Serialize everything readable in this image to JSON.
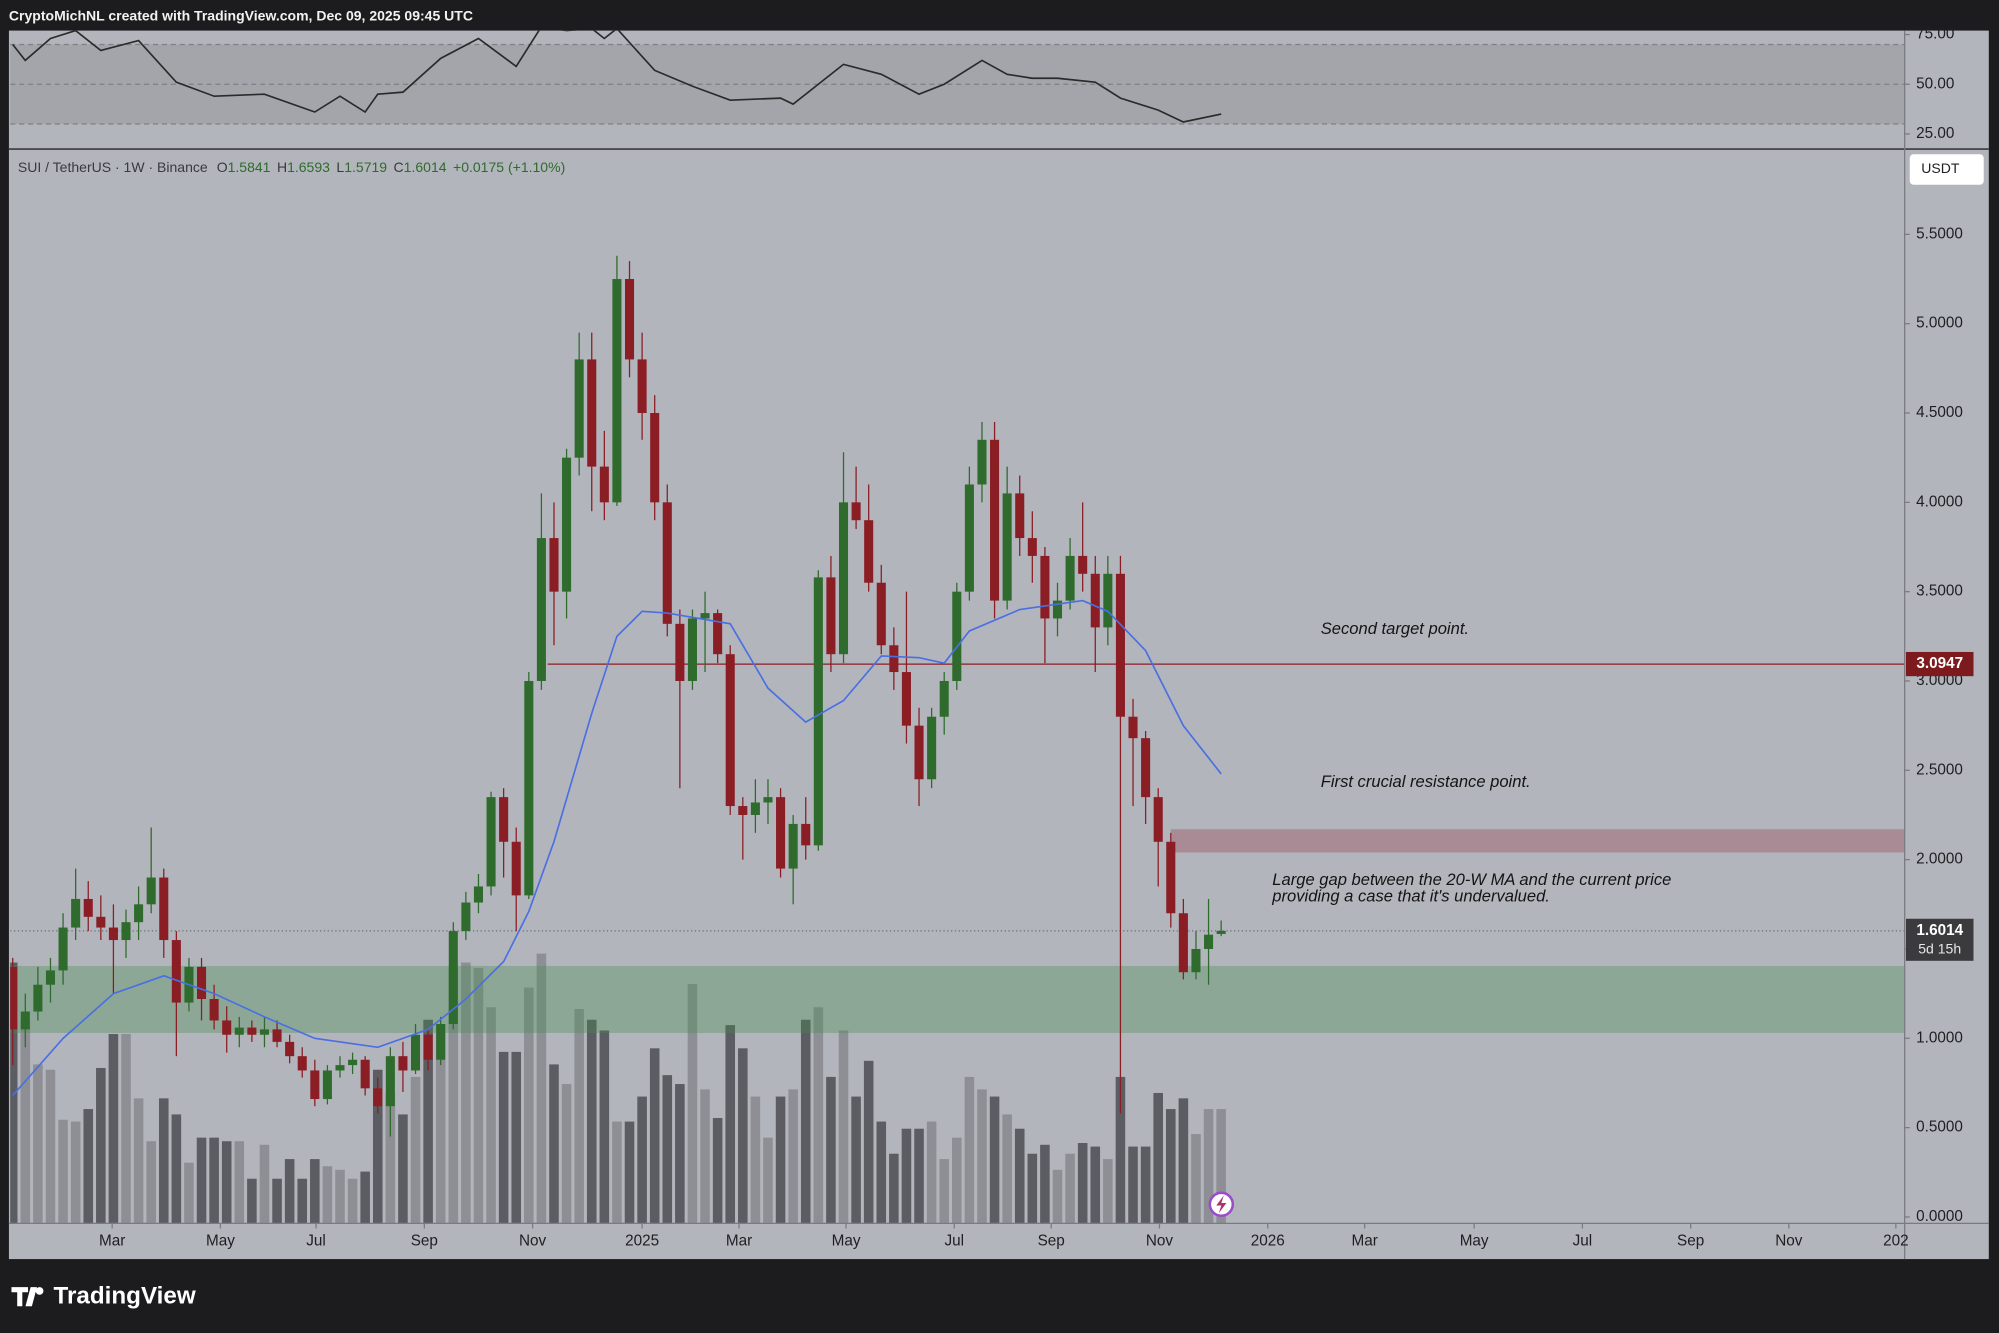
{
  "header": "CryptoMichNL created with TradingView.com, Dec 09, 2025 09:45 UTC",
  "brand": "TradingView",
  "chart_data": {
    "type": "candlestick",
    "symbol": "SUI / TetherUS · 1W · Binance",
    "ohlc_letters": [
      "O",
      "H",
      "L",
      "C"
    ],
    "change": "+0.0175 (+1.10%)",
    "currency": "USDT",
    "countdown": "5d 15h",
    "candles": [
      [
        1.4,
        1.45,
        0.85,
        1.05
      ],
      [
        1.05,
        1.25,
        0.95,
        1.15
      ],
      [
        1.15,
        1.4,
        1.1,
        1.3
      ],
      [
        1.3,
        1.45,
        1.2,
        1.38
      ],
      [
        1.38,
        1.7,
        1.3,
        1.62
      ],
      [
        1.62,
        1.95,
        1.55,
        1.78
      ],
      [
        1.78,
        1.88,
        1.6,
        1.68
      ],
      [
        1.68,
        1.8,
        1.55,
        1.62
      ],
      [
        1.62,
        1.75,
        1.25,
        1.55
      ],
      [
        1.55,
        1.72,
        1.45,
        1.65
      ],
      [
        1.65,
        1.85,
        1.55,
        1.75
      ],
      [
        1.75,
        2.18,
        1.7,
        1.9
      ],
      [
        1.9,
        1.95,
        1.45,
        1.55
      ],
      [
        1.55,
        1.6,
        0.9,
        1.2
      ],
      [
        1.2,
        1.45,
        1.15,
        1.4
      ],
      [
        1.4,
        1.45,
        1.1,
        1.22
      ],
      [
        1.22,
        1.3,
        1.05,
        1.1
      ],
      [
        1.1,
        1.18,
        0.92,
        1.02
      ],
      [
        1.02,
        1.12,
        0.95,
        1.06
      ],
      [
        1.06,
        1.1,
        0.98,
        1.02
      ],
      [
        1.02,
        1.12,
        0.95,
        1.05
      ],
      [
        1.05,
        1.1,
        0.95,
        0.98
      ],
      [
        0.98,
        1.02,
        0.86,
        0.9
      ],
      [
        0.9,
        0.95,
        0.78,
        0.82
      ],
      [
        0.82,
        0.88,
        0.62,
        0.66
      ],
      [
        0.66,
        0.85,
        0.63,
        0.82
      ],
      [
        0.82,
        0.9,
        0.78,
        0.85
      ],
      [
        0.85,
        0.92,
        0.8,
        0.88
      ],
      [
        0.88,
        0.9,
        0.68,
        0.72
      ],
      [
        0.72,
        0.78,
        0.58,
        0.62
      ],
      [
        0.62,
        0.95,
        0.45,
        0.9
      ],
      [
        0.9,
        0.98,
        0.7,
        0.82
      ],
      [
        0.82,
        1.08,
        0.8,
        1.02
      ],
      [
        1.02,
        1.05,
        0.82,
        0.88
      ],
      [
        0.88,
        1.12,
        0.85,
        1.08
      ],
      [
        1.08,
        1.65,
        1.05,
        1.6
      ],
      [
        1.6,
        1.82,
        1.55,
        1.76
      ],
      [
        1.76,
        1.92,
        1.7,
        1.85
      ],
      [
        1.85,
        2.38,
        1.8,
        2.35
      ],
      [
        2.35,
        2.4,
        1.9,
        2.1
      ],
      [
        2.1,
        2.18,
        1.6,
        1.8
      ],
      [
        1.8,
        3.05,
        1.78,
        3.0
      ],
      [
        3.0,
        4.05,
        2.95,
        3.8
      ],
      [
        3.8,
        4.0,
        3.2,
        3.5
      ],
      [
        3.5,
        4.3,
        3.35,
        4.25
      ],
      [
        4.25,
        4.95,
        4.15,
        4.8
      ],
      [
        4.8,
        4.95,
        3.95,
        4.2
      ],
      [
        4.2,
        4.4,
        3.9,
        4.0
      ],
      [
        4.0,
        5.38,
        3.98,
        5.25
      ],
      [
        5.25,
        5.35,
        4.7,
        4.8
      ],
      [
        4.8,
        4.95,
        4.35,
        4.5
      ],
      [
        4.5,
        4.6,
        3.9,
        4.0
      ],
      [
        4.0,
        4.1,
        3.25,
        3.32
      ],
      [
        3.32,
        3.4,
        2.4,
        3.0
      ],
      [
        3.0,
        3.4,
        2.95,
        3.35
      ],
      [
        3.35,
        3.5,
        3.05,
        3.38
      ],
      [
        3.38,
        3.4,
        3.1,
        3.15
      ],
      [
        3.15,
        3.2,
        2.25,
        2.3
      ],
      [
        2.3,
        2.35,
        2.0,
        2.25
      ],
      [
        2.25,
        2.45,
        2.15,
        2.32
      ],
      [
        2.32,
        2.45,
        2.2,
        2.35
      ],
      [
        2.35,
        2.4,
        1.9,
        1.95
      ],
      [
        1.95,
        2.25,
        1.75,
        2.2
      ],
      [
        2.2,
        2.35,
        2.0,
        2.08
      ],
      [
        2.08,
        3.62,
        2.05,
        3.58
      ],
      [
        3.58,
        3.7,
        3.05,
        3.15
      ],
      [
        3.15,
        4.28,
        3.1,
        4.0
      ],
      [
        4.0,
        4.2,
        3.85,
        3.9
      ],
      [
        3.9,
        4.1,
        3.5,
        3.55
      ],
      [
        3.55,
        3.65,
        3.15,
        3.2
      ],
      [
        3.2,
        3.3,
        2.95,
        3.05
      ],
      [
        3.05,
        3.5,
        2.65,
        2.75
      ],
      [
        2.75,
        2.85,
        2.3,
        2.45
      ],
      [
        2.45,
        2.85,
        2.4,
        2.8
      ],
      [
        2.8,
        3.05,
        2.7,
        3.0
      ],
      [
        3.0,
        3.55,
        2.95,
        3.5
      ],
      [
        3.5,
        4.2,
        3.45,
        4.1
      ],
      [
        4.1,
        4.45,
        4.0,
        4.35
      ],
      [
        4.35,
        4.45,
        3.35,
        3.45
      ],
      [
        3.45,
        4.2,
        3.4,
        4.05
      ],
      [
        4.05,
        4.15,
        3.7,
        3.8
      ],
      [
        3.8,
        3.95,
        3.55,
        3.7
      ],
      [
        3.7,
        3.75,
        3.1,
        3.35
      ],
      [
        3.35,
        3.55,
        3.25,
        3.45
      ],
      [
        3.45,
        3.8,
        3.4,
        3.7
      ],
      [
        3.7,
        4.0,
        3.5,
        3.6
      ],
      [
        3.6,
        3.7,
        3.05,
        3.3
      ],
      [
        3.3,
        3.7,
        3.2,
        3.6
      ],
      [
        3.6,
        3.7,
        0.58,
        2.8
      ],
      [
        2.8,
        2.9,
        2.3,
        2.68
      ],
      [
        2.68,
        2.72,
        2.2,
        2.35
      ],
      [
        2.35,
        2.4,
        1.85,
        2.1
      ],
      [
        2.1,
        2.15,
        1.62,
        1.7
      ],
      [
        1.7,
        1.78,
        1.33,
        1.37
      ],
      [
        1.37,
        1.6,
        1.33,
        1.5
      ],
      [
        1.5,
        1.78,
        1.3,
        1.58
      ],
      [
        1.5841,
        1.6593,
        1.5719,
        1.6014
      ]
    ],
    "colors": {
      "up": "#2f6b2c",
      "down": "#8b1d24"
    },
    "volume": [
      1.46,
      1.14,
      0.89,
      0.86,
      0.58,
      0.57,
      0.64,
      0.87,
      1.06,
      1.06,
      0.7,
      0.46,
      0.7,
      0.61,
      0.34,
      0.48,
      0.48,
      0.46,
      0.46,
      0.25,
      0.44,
      0.25,
      0.36,
      0.25,
      0.36,
      0.32,
      0.3,
      0.25,
      0.29,
      0.86,
      0.73,
      0.61,
      0.82,
      1.14,
      1.11,
      1.43,
      1.46,
      1.43,
      1.21,
      0.96,
      0.96,
      1.32,
      1.51,
      0.89,
      0.78,
      1.2,
      1.14,
      1.08,
      0.57,
      0.57,
      0.71,
      0.98,
      0.83,
      0.78,
      1.34,
      0.75,
      0.59,
      1.11,
      0.98,
      0.71,
      0.48,
      0.71,
      0.75,
      1.14,
      1.21,
      0.82,
      1.08,
      0.71,
      0.91,
      0.57,
      0.39,
      0.53,
      0.53,
      0.57,
      0.36,
      0.48,
      0.82,
      0.75,
      0.71,
      0.61,
      0.53,
      0.39,
      0.44,
      0.3,
      0.39,
      0.45,
      0.43,
      0.36,
      0.82,
      0.43,
      0.43,
      0.73,
      0.64,
      0.7,
      0.5,
      0.64,
      0.64
    ],
    "volume_colors": {
      "up": "#8e8f95",
      "down": "#5c5d62"
    },
    "ma": {
      "x": [
        0,
        4,
        8,
        12,
        16,
        20,
        24,
        29,
        33,
        36,
        39,
        41,
        43,
        46,
        48,
        50,
        52,
        57,
        60,
        63,
        66,
        69,
        72,
        74,
        76,
        80,
        85,
        87,
        90,
        93,
        96
      ],
      "values": [
        0.68,
        1.0,
        1.25,
        1.35,
        1.25,
        1.12,
        1.0,
        0.95,
        1.05,
        1.22,
        1.43,
        1.71,
        2.1,
        2.82,
        3.25,
        3.39,
        3.38,
        3.32,
        2.96,
        2.77,
        2.89,
        3.14,
        3.13,
        3.1,
        3.28,
        3.4,
        3.45,
        3.39,
        3.17,
        2.75,
        2.48
      ],
      "color": "#4a6fe3"
    },
    "resistance": {
      "value": 3.0947,
      "x_from": 42.5,
      "color": "#8b1d24"
    },
    "zones": [
      {
        "from": 1.03,
        "to": 1.405,
        "x_from": -0.2,
        "color": "rgba(70,140,80,0.35)"
      },
      {
        "from": 2.04,
        "to": 2.17,
        "x_from": 92,
        "color": "rgba(150,60,75,0.35)"
      }
    ],
    "annotations": {
      "second_target": "Second target point.",
      "first_resistance": "First crucial resistance point.",
      "gap": [
        "Large gap between the 20-W MA and the current price",
        "providing a case that it's undervalued."
      ]
    },
    "xlim": [
      -0.2,
      150.3
    ],
    "xticks": [
      {
        "value": 7.9,
        "label": "Mar"
      },
      {
        "value": 16.5,
        "label": "May"
      },
      {
        "value": 24.1,
        "label": "Jul"
      },
      {
        "value": 32.7,
        "label": "Sep"
      },
      {
        "value": 41.3,
        "label": "Nov"
      },
      {
        "value": 50.0,
        "label": "2025"
      },
      {
        "value": 57.7,
        "label": "Mar"
      },
      {
        "value": 66.2,
        "label": "May"
      },
      {
        "value": 74.8,
        "label": "Jul"
      },
      {
        "value": 82.5,
        "label": "Sep"
      },
      {
        "value": 91.1,
        "label": "Nov"
      },
      {
        "value": 99.7,
        "label": "2026"
      },
      {
        "value": 107.4,
        "label": "Mar"
      },
      {
        "value": 116.1,
        "label": "May"
      },
      {
        "value": 124.7,
        "label": "Jul"
      },
      {
        "value": 133.3,
        "label": "Sep"
      },
      {
        "value": 141.1,
        "label": "Nov"
      },
      {
        "value": 149.6,
        "label": "202"
      }
    ],
    "ylim": [
      -0.036,
      5.97
    ],
    "yticks": [
      {
        "value": 0,
        "label": "0.0000"
      },
      {
        "value": 0.5,
        "label": "0.5000"
      },
      {
        "value": 1,
        "label": "1.0000"
      },
      {
        "value": 1.5,
        "label": "1.5000"
      },
      {
        "value": 2,
        "label": "2.0000"
      },
      {
        "value": 2.5,
        "label": "2.5000"
      },
      {
        "value": 3,
        "label": "3.0000"
      },
      {
        "value": 3.5,
        "label": "3.5000"
      },
      {
        "value": 4,
        "label": "4.0000"
      },
      {
        "value": 4.5,
        "label": "4.5000"
      },
      {
        "value": 5,
        "label": "5.0000"
      },
      {
        "value": 5.5,
        "label": "5.5000"
      }
    ],
    "grid": false,
    "rsi": {
      "x": [
        0,
        1,
        3,
        5,
        7,
        10,
        13,
        16,
        20,
        24,
        26,
        28,
        29,
        31,
        34,
        37,
        40,
        42,
        44,
        46,
        47,
        48,
        51,
        54,
        57,
        61,
        62,
        66,
        69,
        72,
        74,
        77,
        79,
        81,
        83,
        86,
        88,
        91,
        93,
        96
      ],
      "values": [
        70,
        62,
        73,
        77,
        67,
        72,
        51,
        44,
        45,
        36,
        44,
        36,
        45,
        46,
        63,
        73,
        59,
        79,
        77,
        78,
        73,
        78,
        57,
        49,
        42,
        43,
        40,
        60,
        55,
        45,
        50,
        62,
        55,
        53,
        53,
        51,
        43,
        37,
        31,
        35
      ],
      "color": "#2a2a2a",
      "ylim": [
        18,
        77
      ],
      "yticks": [
        {
          "value": 25,
          "label": "25.00"
        },
        {
          "value": 50,
          "label": "50.00"
        },
        {
          "value": 75,
          "label": "75.00"
        }
      ],
      "levels": [
        70,
        50,
        30
      ]
    }
  }
}
